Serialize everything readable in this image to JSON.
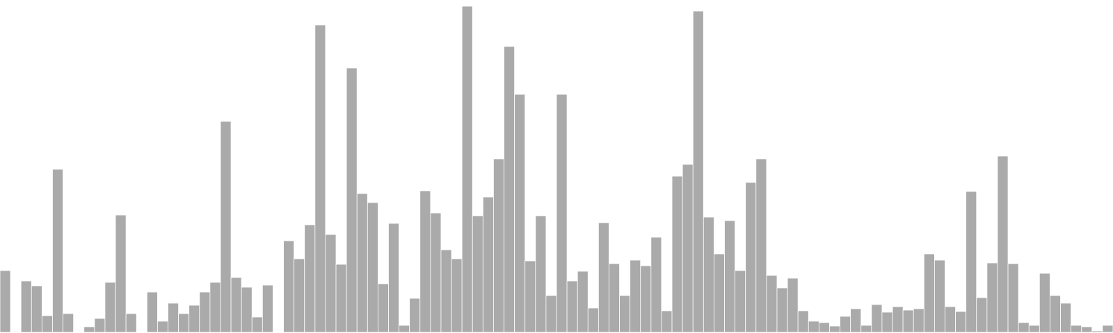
{
  "colors": {
    "bar_fill": "#aaaaaa",
    "bar_edge": "#ffffff",
    "background": "#ffffff"
  },
  "chart_data": {
    "type": "bar",
    "title": "",
    "xlabel": "",
    "ylabel": "",
    "ylim": [
      0,
      479
    ],
    "grid": false,
    "axes_visible": false,
    "values": [
      89,
      1,
      74,
      67,
      24,
      235,
      27,
      0,
      8,
      20,
      72,
      169,
      27,
      0,
      58,
      16,
      42,
      27,
      39,
      58,
      72,
      304,
      79,
      65,
      22,
      68,
      0,
      132,
      106,
      155,
      443,
      141,
      98,
      381,
      200,
      187,
      70,
      157,
      10,
      49,
      204,
      172,
      119,
      106,
      470,
      168,
      195,
      250,
      412,
      343,
      103,
      168,
      53,
      343,
      74,
      88,
      35,
      158,
      99,
      53,
      104,
      96,
      137,
      31,
      225,
      242,
      463,
      166,
      113,
      161,
      89,
      216,
      250,
      82,
      64,
      78,
      31,
      16,
      14,
      9,
      23,
      34,
      10,
      40,
      29,
      37,
      32,
      34,
      113,
      104,
      37,
      30,
      203,
      50,
      100,
      254,
      99,
      14,
      10,
      85,
      53,
      42,
      10,
      8,
      2,
      10
    ]
  }
}
